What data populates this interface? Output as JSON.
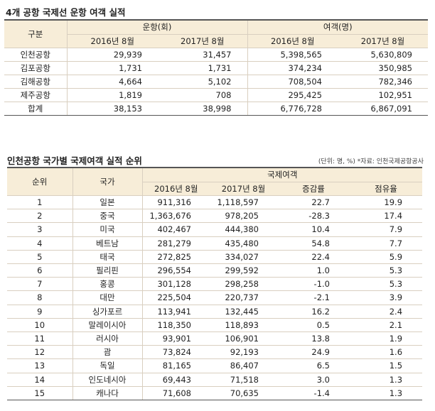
{
  "section1": {
    "title": "4개 공항 국제선 운항 여객 실적",
    "header": {
      "category": "구분",
      "flights": "운항(회)",
      "passengers": "여객(명)",
      "col_2016": "2016년 8월",
      "col_2017": "2017년 8월"
    },
    "rows": [
      {
        "name": "인천공항",
        "f2016": "29,939",
        "f2017": "31,457",
        "p2016": "5,398,565",
        "p2017": "5,630,809"
      },
      {
        "name": "김포공항",
        "f2016": "1,731",
        "f2017": "1,731",
        "p2016": "374,234",
        "p2017": "350,985"
      },
      {
        "name": "김해공항",
        "f2016": "4,664",
        "f2017": "5,102",
        "p2016": "708,504",
        "p2017": "782,346"
      },
      {
        "name": "제주공항",
        "f2016": "1,819",
        "f2017": "708",
        "p2016": "295,425",
        "p2017": "102,951"
      },
      {
        "name": "합계",
        "f2016": "38,153",
        "f2017": "38,998",
        "p2016": "6,776,728",
        "p2017": "6,867,091"
      }
    ]
  },
  "section2": {
    "title": "인천공항 국가별 국제여객 실적 순위",
    "note": "(단위: 명, %) *자료: 인천국제공항공사",
    "header": {
      "rank": "순위",
      "country": "국가",
      "intl_passengers": "국제여객",
      "col_2016": "2016년 8월",
      "col_2017": "2017년 8월",
      "change": "증감률",
      "share": "점유율"
    },
    "rows": [
      {
        "rank": "1",
        "country": "일본",
        "v2016": "911,316",
        "v2017": "1,118,597",
        "change": "22.7",
        "share": "19.9"
      },
      {
        "rank": "2",
        "country": "중국",
        "v2016": "1,363,676",
        "v2017": "978,205",
        "change": "-28.3",
        "share": "17.4"
      },
      {
        "rank": "3",
        "country": "미국",
        "v2016": "402,467",
        "v2017": "444,380",
        "change": "10.4",
        "share": "7.9"
      },
      {
        "rank": "4",
        "country": "베트남",
        "v2016": "281,279",
        "v2017": "435,480",
        "change": "54.8",
        "share": "7.7"
      },
      {
        "rank": "5",
        "country": "태국",
        "v2016": "272,825",
        "v2017": "334,027",
        "change": "22.4",
        "share": "5.9"
      },
      {
        "rank": "6",
        "country": "필리핀",
        "v2016": "296,554",
        "v2017": "299,592",
        "change": "1.0",
        "share": "5.3"
      },
      {
        "rank": "7",
        "country": "홍콩",
        "v2016": "301,128",
        "v2017": "298,258",
        "change": "-1.0",
        "share": "5.3"
      },
      {
        "rank": "8",
        "country": "대만",
        "v2016": "225,504",
        "v2017": "220,737",
        "change": "-2.1",
        "share": "3.9"
      },
      {
        "rank": "9",
        "country": "싱가포르",
        "v2016": "113,941",
        "v2017": "132,445",
        "change": "16.2",
        "share": "2.4"
      },
      {
        "rank": "10",
        "country": "말레이시아",
        "v2016": "118,350",
        "v2017": "118,893",
        "change": "0.5",
        "share": "2.1"
      },
      {
        "rank": "11",
        "country": "러시아",
        "v2016": "93,901",
        "v2017": "106,901",
        "change": "13.8",
        "share": "1.9"
      },
      {
        "rank": "12",
        "country": "괌",
        "v2016": "73,824",
        "v2017": "92,193",
        "change": "24.9",
        "share": "1.6"
      },
      {
        "rank": "13",
        "country": "독일",
        "v2016": "81,165",
        "v2017": "86,407",
        "change": "6.5",
        "share": "1.5"
      },
      {
        "rank": "14",
        "country": "인도네시아",
        "v2016": "69,443",
        "v2017": "71,518",
        "change": "3.0",
        "share": "1.3"
      },
      {
        "rank": "15",
        "country": "캐나다",
        "v2016": "71,608",
        "v2017": "70,635",
        "change": "-1.4",
        "share": "1.3"
      }
    ]
  }
}
